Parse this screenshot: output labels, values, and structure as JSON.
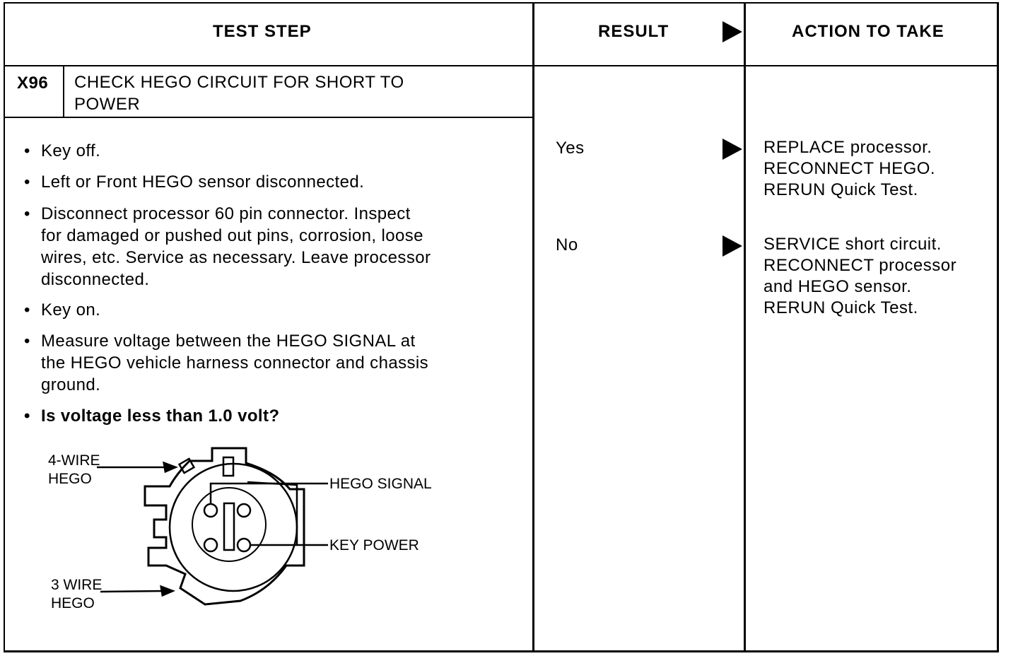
{
  "header": {
    "test_step": "TEST STEP",
    "result": "RESULT",
    "action": "ACTION TO TAKE"
  },
  "step": {
    "id": "X96",
    "title_line1": "CHECK HEGO CIRCUIT FOR SHORT TO",
    "title_line2": "POWER"
  },
  "bullets": [
    {
      "lines": [
        "Key off."
      ]
    },
    {
      "lines": [
        "Left or Front HEGO sensor disconnected."
      ]
    },
    {
      "lines": [
        "Disconnect processor 60 pin connector. Inspect",
        "for damaged or pushed out pins, corrosion, loose",
        "wires, etc. Service as necessary. Leave processor",
        "disconnected."
      ]
    },
    {
      "lines": [
        "Key on."
      ]
    },
    {
      "lines": [
        "Measure voltage between the HEGO SIGNAL at",
        "the HEGO vehicle harness connector and chassis",
        "ground."
      ]
    },
    {
      "lines": [
        "Is voltage less than 1.0 volt?"
      ],
      "bold": true
    }
  ],
  "bullet_glyph": "•",
  "results": [
    {
      "label": "Yes",
      "action": [
        "REPLACE processor.",
        "RECONNECT HEGO.",
        "RERUN Quick Test."
      ]
    },
    {
      "label": "No",
      "action": [
        "SERVICE short circuit.",
        "RECONNECT processor",
        "and HEGO sensor.",
        "RERUN Quick Test."
      ]
    }
  ],
  "diagram": {
    "four_wire_1": "4-WIRE",
    "four_wire_2": "HEGO",
    "three_wire_1": "3 WIRE",
    "three_wire_2": "HEGO",
    "hego_signal": "HEGO SIGNAL",
    "key_power": "KEY POWER"
  }
}
